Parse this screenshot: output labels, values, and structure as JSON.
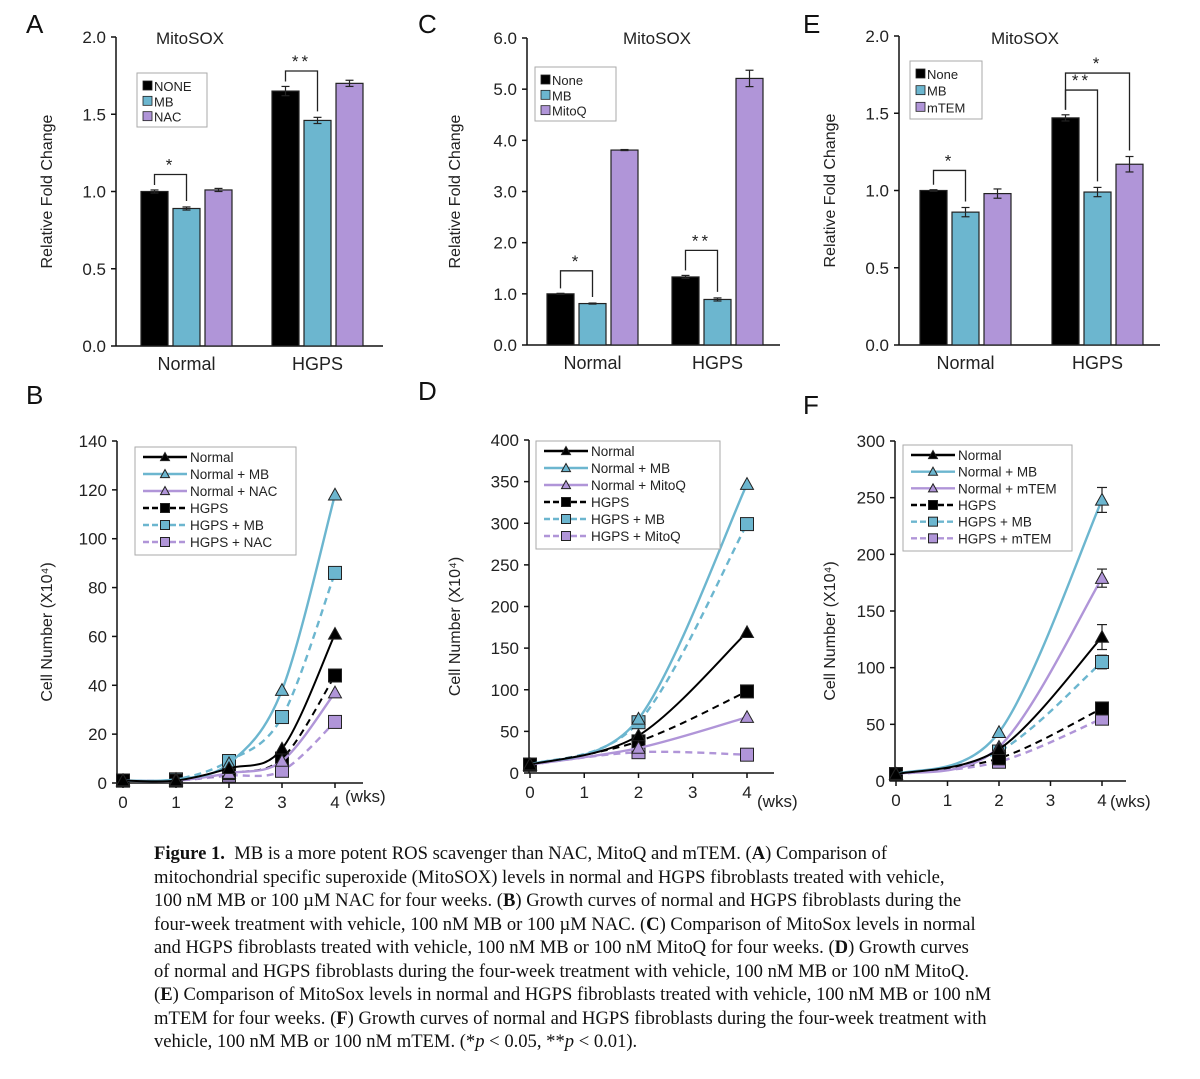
{
  "colors": {
    "black": "#000000",
    "blue": "#6cb6cf",
    "purple": "#b095d8",
    "axis": "#111111",
    "legend_border": "#aaaaaa"
  },
  "chart_data": [
    {
      "panel": "A",
      "type": "bar",
      "title": "MitoSOX",
      "xlabel": "",
      "ylabel": "Relative Fold Change",
      "ylim": [
        0,
        2.0
      ],
      "yticks": [
        "0.0",
        "0.5",
        "1.0",
        "1.5",
        "2.0"
      ],
      "ytick_values": [
        0,
        0.5,
        1.0,
        1.5,
        2.0
      ],
      "categories": [
        "Normal",
        "HGPS"
      ],
      "legend_position": "top-left",
      "series": [
        {
          "name": "NONE",
          "color": "black",
          "values": [
            1.0,
            1.65
          ],
          "errors": [
            0.01,
            0.03
          ]
        },
        {
          "name": "MB",
          "color": "blue",
          "values": [
            0.89,
            1.46
          ],
          "errors": [
            0.01,
            0.02
          ]
        },
        {
          "name": "NAC",
          "color": "purple",
          "values": [
            1.01,
            1.7
          ],
          "errors": [
            0.01,
            0.02
          ]
        }
      ],
      "significance": [
        {
          "category": 0,
          "from": 0,
          "to": 1,
          "label": "*",
          "y": 1.11
        },
        {
          "category": 1,
          "from": 0,
          "to": 1,
          "label": "**",
          "y": 1.78
        }
      ]
    },
    {
      "panel": "C",
      "type": "bar",
      "title": "MitoSOX",
      "xlabel": "",
      "ylabel": "Relative Fold Change",
      "ylim": [
        0,
        6.0
      ],
      "yticks": [
        "0.0",
        "1.0",
        "2.0",
        "3.0",
        "4.0",
        "5.0",
        "6.0"
      ],
      "ytick_values": [
        0,
        1,
        2,
        3,
        4,
        5,
        6
      ],
      "categories": [
        "Normal",
        "HGPS"
      ],
      "legend_position": "top-left",
      "series": [
        {
          "name": "None",
          "color": "black",
          "values": [
            1.0,
            1.33
          ],
          "errors": [
            0.01,
            0.03
          ]
        },
        {
          "name": "MB",
          "color": "blue",
          "values": [
            0.81,
            0.89
          ],
          "errors": [
            0.01,
            0.03
          ]
        },
        {
          "name": "MitoQ",
          "color": "purple",
          "values": [
            3.81,
            5.21
          ],
          "errors": [
            0.01,
            0.16
          ]
        }
      ],
      "significance": [
        {
          "category": 0,
          "from": 0,
          "to": 1,
          "label": "*",
          "y": 1.45
        },
        {
          "category": 1,
          "from": 0,
          "to": 1,
          "label": "**",
          "y": 1.85
        }
      ]
    },
    {
      "panel": "E",
      "type": "bar",
      "title": "MitoSOX",
      "xlabel": "",
      "ylabel": "Relative Fold Change",
      "ylim": [
        0,
        2.0
      ],
      "yticks": [
        "0.0",
        "0.5",
        "1.0",
        "1.5",
        "2.0"
      ],
      "ytick_values": [
        0,
        0.5,
        1.0,
        1.5,
        2.0
      ],
      "categories": [
        "Normal",
        "HGPS"
      ],
      "legend_position": "top-left",
      "series": [
        {
          "name": "None",
          "color": "black",
          "values": [
            1.0,
            1.47
          ],
          "errors": [
            0.005,
            0.02
          ]
        },
        {
          "name": "MB",
          "color": "blue",
          "values": [
            0.86,
            0.99
          ],
          "errors": [
            0.03,
            0.03
          ]
        },
        {
          "name": "mTEM",
          "color": "purple",
          "values": [
            0.98,
            1.17
          ],
          "errors": [
            0.03,
            0.05
          ]
        }
      ],
      "significance": [
        {
          "category": 0,
          "from": 0,
          "to": 1,
          "label": "*",
          "y": 1.13
        },
        {
          "category": 1,
          "from": 0,
          "to": 1,
          "label": "**",
          "y": 1.65
        },
        {
          "category": 1,
          "from": 0,
          "to": 2,
          "label": "*",
          "y": 1.76
        }
      ]
    },
    {
      "panel": "B",
      "type": "line",
      "title": "",
      "xlabel": "(wks)",
      "ylabel": "Cell Number (X10⁴)",
      "xlim": [
        0,
        4
      ],
      "ylim": [
        0,
        140
      ],
      "xticks": [
        "0",
        "1",
        "2",
        "3",
        "4"
      ],
      "yticks": [
        "0",
        "20",
        "40",
        "60",
        "80",
        "100",
        "120",
        "140"
      ],
      "ytick_values": [
        0,
        20,
        40,
        60,
        80,
        100,
        120,
        140
      ],
      "legend_position": "top-center",
      "x": [
        0,
        1,
        2,
        3,
        4
      ],
      "series": [
        {
          "name": "Normal",
          "color": "black",
          "dashed": false,
          "marker": "triangle",
          "filled": true,
          "values": [
            1,
            1,
            6,
            14,
            61
          ]
        },
        {
          "name": "Normal + MB",
          "color": "blue",
          "dashed": false,
          "marker": "triangle",
          "filled": true,
          "values": [
            1,
            1.5,
            8,
            38,
            118
          ]
        },
        {
          "name": "Normal + NAC",
          "color": "purple",
          "dashed": false,
          "marker": "triangle",
          "filled": true,
          "values": [
            1,
            1,
            4,
            9,
            37
          ]
        },
        {
          "name": "HGPS",
          "color": "black",
          "dashed": true,
          "marker": "square",
          "filled": true,
          "values": [
            1,
            1,
            4,
            10,
            44
          ]
        },
        {
          "name": "HGPS + MB",
          "color": "blue",
          "dashed": true,
          "marker": "square",
          "filled": true,
          "values": [
            1,
            1.5,
            9,
            27,
            86
          ]
        },
        {
          "name": "HGPS + NAC",
          "color": "purple",
          "dashed": true,
          "marker": "square",
          "filled": true,
          "values": [
            1,
            1,
            3,
            5,
            25
          ]
        }
      ]
    },
    {
      "panel": "D",
      "type": "line",
      "title": "",
      "xlabel": "(wks)",
      "ylabel": "Cell Number (X10⁴)",
      "xlim": [
        0,
        4
      ],
      "ylim": [
        0,
        400
      ],
      "xticks": [
        "0",
        "1",
        "2",
        "3",
        "4"
      ],
      "yticks": [
        "0",
        "50",
        "100",
        "150",
        "200",
        "250",
        "300",
        "350",
        "400"
      ],
      "ytick_values": [
        0,
        50,
        100,
        150,
        200,
        250,
        300,
        350,
        400
      ],
      "legend_position": "top-center",
      "x": [
        0,
        2,
        4
      ],
      "series": [
        {
          "name": "Normal",
          "color": "black",
          "dashed": false,
          "marker": "triangle",
          "values": [
            10,
            45,
            169
          ]
        },
        {
          "name": "Normal + MB",
          "color": "blue",
          "dashed": false,
          "marker": "triangle",
          "values": [
            10,
            65,
            347
          ]
        },
        {
          "name": "Normal + MitoQ",
          "color": "purple",
          "dashed": false,
          "marker": "triangle",
          "values": [
            10,
            30,
            67
          ]
        },
        {
          "name": "HGPS",
          "color": "black",
          "dashed": true,
          "marker": "square",
          "values": [
            10,
            38,
            98
          ]
        },
        {
          "name": "HGPS + MB",
          "color": "blue",
          "dashed": true,
          "marker": "square",
          "values": [
            10,
            61,
            299
          ]
        },
        {
          "name": "HGPS + MitoQ",
          "color": "purple",
          "dashed": true,
          "marker": "square",
          "values": [
            10,
            25,
            22
          ]
        }
      ]
    },
    {
      "panel": "F",
      "type": "line",
      "title": "",
      "xlabel": "(wks)",
      "ylabel": "Cell Number (X10⁴)",
      "xlim": [
        0,
        4
      ],
      "ylim": [
        0,
        300
      ],
      "xticks": [
        "0",
        "1",
        "2",
        "3",
        "4"
      ],
      "yticks": [
        "0",
        "50",
        "100",
        "150",
        "200",
        "250",
        "300"
      ],
      "ytick_values": [
        0,
        50,
        100,
        150,
        200,
        250,
        300
      ],
      "legend_position": "top-left",
      "x": [
        0,
        2,
        4
      ],
      "series": [
        {
          "name": "Normal",
          "color": "black",
          "dashed": false,
          "marker": "triangle",
          "values": [
            6,
            28,
            127
          ],
          "errors": [
            0,
            0,
            11
          ]
        },
        {
          "name": "Normal + MB",
          "color": "blue",
          "dashed": false,
          "marker": "triangle",
          "values": [
            6,
            43,
            248
          ],
          "errors": [
            0,
            0,
            11
          ]
        },
        {
          "name": "Normal + mTEM",
          "color": "purple",
          "dashed": false,
          "marker": "triangle",
          "values": [
            6,
            30,
            179
          ],
          "errors": [
            0,
            0,
            8
          ]
        },
        {
          "name": "HGPS",
          "color": "black",
          "dashed": true,
          "marker": "square",
          "values": [
            6,
            20,
            64
          ],
          "errors": [
            0,
            0,
            3
          ]
        },
        {
          "name": "HGPS + MB",
          "color": "blue",
          "dashed": true,
          "marker": "square",
          "values": [
            6,
            26,
            105
          ],
          "errors": [
            0,
            0,
            6
          ]
        },
        {
          "name": "HGPS + mTEM",
          "color": "purple",
          "dashed": true,
          "marker": "square",
          "values": [
            6,
            17,
            55
          ],
          "errors": [
            0,
            0,
            3
          ]
        }
      ]
    }
  ],
  "caption": {
    "label": "Figure 1.",
    "lines": [
      [
        {
          "t": "MB is a more potent ROS scavenger than NAC, MitoQ and mTEM. ("
        },
        {
          "b": "A"
        },
        {
          "t": ") Comparison of"
        }
      ],
      [
        {
          "t": "mitochondrial specific superoxide (MitoSOX) levels in normal and HGPS fibroblasts treated with vehicle,"
        }
      ],
      [
        {
          "t": "100 nM MB or 100 µM NAC for four weeks. ("
        },
        {
          "b": "B"
        },
        {
          "t": ") Growth curves of normal and HGPS fibroblasts during the"
        }
      ],
      [
        {
          "t": "four-week treatment with vehicle, 100 nM MB or 100 µM NAC. ("
        },
        {
          "b": "C"
        },
        {
          "t": ") Comparison of MitoSox levels in normal"
        }
      ],
      [
        {
          "t": "and HGPS fibroblasts treated with vehicle, 100 nM MB or 100 nM MitoQ for four weeks. ("
        },
        {
          "b": "D"
        },
        {
          "t": ") Growth curves"
        }
      ],
      [
        {
          "t": "of normal and HGPS fibroblasts during the four-week treatment with vehicle, 100 nM MB or 100 nM MitoQ."
        }
      ],
      [
        {
          "t": "("
        },
        {
          "b": "E"
        },
        {
          "t": ") Comparison of MitoSox levels in normal and HGPS fibroblasts treated with vehicle, 100 nM MB or 100 nM"
        }
      ],
      [
        {
          "t": "mTEM for four weeks. ("
        },
        {
          "b": "F"
        },
        {
          "t": ") Growth curves of normal and HGPS fibroblasts during the four-week treatment with"
        }
      ],
      [
        {
          "t": "vehicle, 100 nM MB or 100 nM mTEM. (*"
        },
        {
          "i": "p"
        },
        {
          "t": " < 0.05, **"
        },
        {
          "i": "p"
        },
        {
          "t": " < 0.01)."
        }
      ]
    ]
  }
}
